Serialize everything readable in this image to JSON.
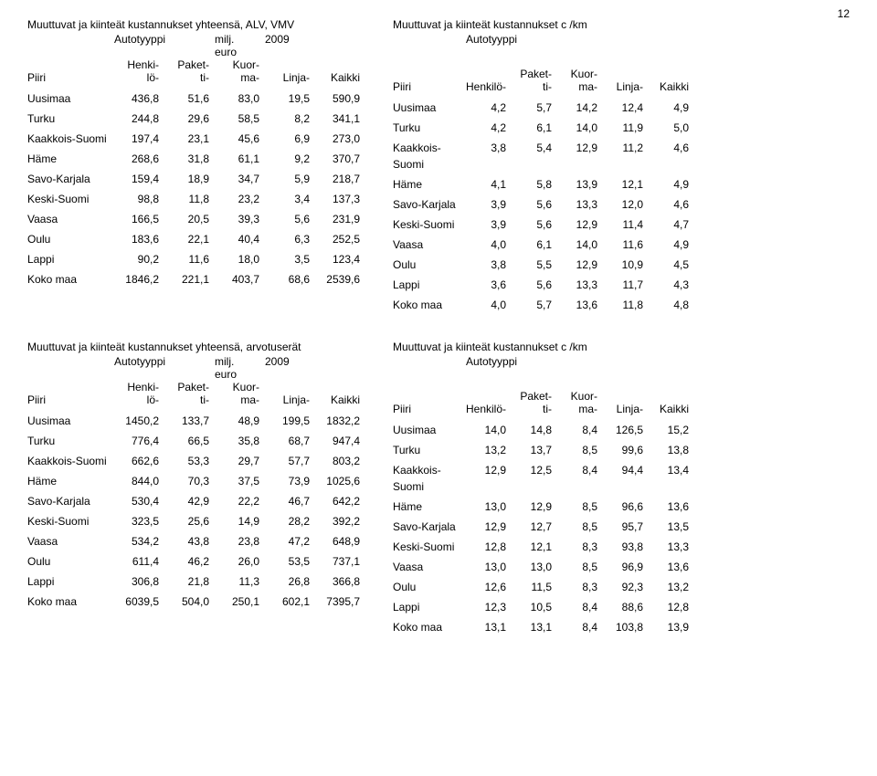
{
  "page_number": "12",
  "section1": {
    "left": {
      "title": "Muuttuvat ja kiinteät kustannukset yhteensä, ALV, VMV",
      "subtitle1": "Autotyyppi",
      "unit": "milj.\neuro",
      "year": "2009",
      "piiri_label": "Piiri",
      "col_headers": [
        "Henki-\nlö-",
        "Paket-\nti-",
        "Kuor-\nma-",
        "Linja-",
        "Kaikki"
      ],
      "rows": [
        [
          "Uusimaa",
          "436,8",
          "51,6",
          "83,0",
          "19,5",
          "590,9"
        ],
        [
          "Turku",
          "244,8",
          "29,6",
          "58,5",
          "8,2",
          "341,1"
        ],
        [
          "Kaakkois-Suomi",
          "197,4",
          "23,1",
          "45,6",
          "6,9",
          "273,0"
        ],
        [
          "Häme",
          "268,6",
          "31,8",
          "61,1",
          "9,2",
          "370,7"
        ],
        [
          "Savo-Karjala",
          "159,4",
          "18,9",
          "34,7",
          "5,9",
          "218,7"
        ],
        [
          "Keski-Suomi",
          "98,8",
          "11,8",
          "23,2",
          "3,4",
          "137,3"
        ],
        [
          "Vaasa",
          "166,5",
          "20,5",
          "39,3",
          "5,6",
          "231,9"
        ],
        [
          "Oulu",
          "183,6",
          "22,1",
          "40,4",
          "6,3",
          "252,5"
        ],
        [
          "Lappi",
          "90,2",
          "11,6",
          "18,0",
          "3,5",
          "123,4"
        ]
      ],
      "total_row": [
        "Koko maa",
        "1846,2",
        "221,1",
        "403,7",
        "68,6",
        "2539,6"
      ]
    },
    "right": {
      "title": "Muuttuvat ja kiinteät kustannukset c /km",
      "subtitle1": "Autotyyppi",
      "piiri_label": "Piiri",
      "col_headers": [
        "Henkilö-",
        "Paket-\nti-",
        "Kuor-\nma-",
        "Linja-",
        "Kaikki"
      ],
      "rows": [
        [
          "Uusimaa",
          "4,2",
          "5,7",
          "14,2",
          "12,4",
          "4,9"
        ],
        [
          "Turku",
          "4,2",
          "6,1",
          "14,0",
          "11,9",
          "5,0"
        ],
        [
          "Kaakkois-\nSuomi",
          "3,8",
          "5,4",
          "12,9",
          "11,2",
          "4,6"
        ],
        [
          "Häme",
          "4,1",
          "5,8",
          "13,9",
          "12,1",
          "4,9"
        ],
        [
          "Savo-Karjala",
          "3,9",
          "5,6",
          "13,3",
          "12,0",
          "4,6"
        ],
        [
          "Keski-Suomi",
          "3,9",
          "5,6",
          "12,9",
          "11,4",
          "4,7"
        ],
        [
          "Vaasa",
          "4,0",
          "6,1",
          "14,0",
          "11,6",
          "4,9"
        ],
        [
          "Oulu",
          "3,8",
          "5,5",
          "12,9",
          "10,9",
          "4,5"
        ],
        [
          "Lappi",
          "3,6",
          "5,6",
          "13,3",
          "11,7",
          "4,3"
        ]
      ],
      "total_row": [
        "Koko maa",
        "4,0",
        "5,7",
        "13,6",
        "11,8",
        "4,8"
      ]
    }
  },
  "section2": {
    "left": {
      "title": "Muuttuvat ja kiinteät kustannukset yhteensä, arvotuserät",
      "subtitle1": "Autotyyppi",
      "unit": "milj.\neuro",
      "year": "2009",
      "piiri_label": "Piiri",
      "col_headers": [
        "Henki-\nlö-",
        "Paket-\nti-",
        "Kuor-\nma-",
        "Linja-",
        "Kaikki"
      ],
      "rows": [
        [
          "Uusimaa",
          "1450,2",
          "133,7",
          "48,9",
          "199,5",
          "1832,2"
        ],
        [
          "Turku",
          "776,4",
          "66,5",
          "35,8",
          "68,7",
          "947,4"
        ],
        [
          "Kaakkois-Suomi",
          "662,6",
          "53,3",
          "29,7",
          "57,7",
          "803,2"
        ],
        [
          "Häme",
          "844,0",
          "70,3",
          "37,5",
          "73,9",
          "1025,6"
        ],
        [
          "Savo-Karjala",
          "530,4",
          "42,9",
          "22,2",
          "46,7",
          "642,2"
        ],
        [
          "Keski-Suomi",
          "323,5",
          "25,6",
          "14,9",
          "28,2",
          "392,2"
        ],
        [
          "Vaasa",
          "534,2",
          "43,8",
          "23,8",
          "47,2",
          "648,9"
        ],
        [
          "Oulu",
          "611,4",
          "46,2",
          "26,0",
          "53,5",
          "737,1"
        ],
        [
          "Lappi",
          "306,8",
          "21,8",
          "11,3",
          "26,8",
          "366,8"
        ]
      ],
      "total_row": [
        "Koko maa",
        "6039,5",
        "504,0",
        "250,1",
        "602,1",
        "7395,7"
      ]
    },
    "right": {
      "title": "Muuttuvat ja kiinteät kustannukset c /km",
      "subtitle1": "Autotyyppi",
      "piiri_label": "Piiri",
      "col_headers": [
        "Henkilö-",
        "Paket-\nti-",
        "Kuor-\nma-",
        "Linja-",
        "Kaikki"
      ],
      "rows": [
        [
          "Uusimaa",
          "14,0",
          "14,8",
          "8,4",
          "126,5",
          "15,2"
        ],
        [
          "Turku",
          "13,2",
          "13,7",
          "8,5",
          "99,6",
          "13,8"
        ],
        [
          "Kaakkois-\nSuomi",
          "12,9",
          "12,5",
          "8,4",
          "94,4",
          "13,4"
        ],
        [
          "Häme",
          "13,0",
          "12,9",
          "8,5",
          "96,6",
          "13,6"
        ],
        [
          "Savo-Karjala",
          "12,9",
          "12,7",
          "8,5",
          "95,7",
          "13,5"
        ],
        [
          "Keski-Suomi",
          "12,8",
          "12,1",
          "8,3",
          "93,8",
          "13,3"
        ],
        [
          "Vaasa",
          "13,0",
          "13,0",
          "8,5",
          "96,9",
          "13,6"
        ],
        [
          "Oulu",
          "12,6",
          "11,5",
          "8,3",
          "92,3",
          "13,2"
        ],
        [
          "Lappi",
          "12,3",
          "10,5",
          "8,4",
          "88,6",
          "12,8"
        ]
      ],
      "total_row": [
        "Koko maa",
        "13,1",
        "13,1",
        "8,4",
        "103,8",
        "13,9"
      ]
    }
  }
}
